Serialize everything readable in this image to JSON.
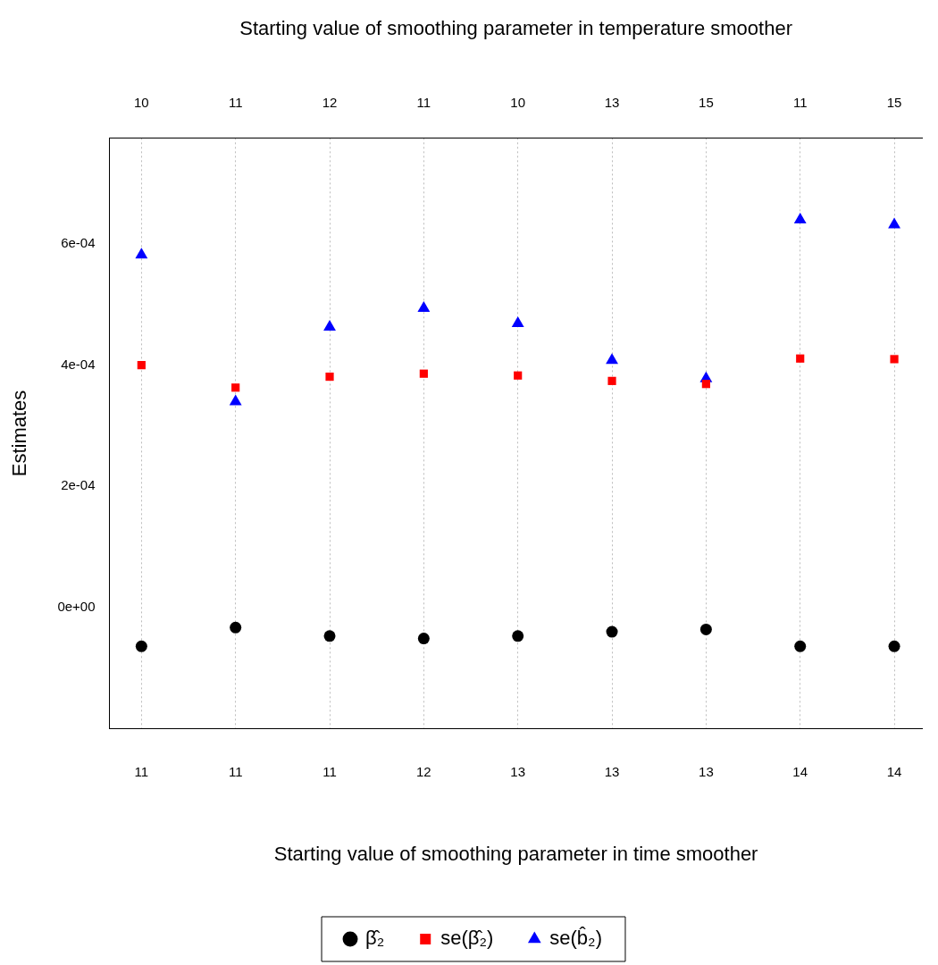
{
  "chart_data": {
    "type": "scatter",
    "xlabel": "Starting value of smoothing parameter in time smoother",
    "x2label": "Starting value of smoothing parameter in temperature smoother",
    "ylabel": "Estimates",
    "categories": [
      "11",
      "11",
      "11",
      "12",
      "13",
      "13",
      "13",
      "14",
      "14"
    ],
    "annotations": [
      "10",
      "11",
      "12",
      "11",
      "10",
      "13",
      "15",
      "11",
      "15"
    ],
    "ylim": [
      -0.0002,
      0.000775
    ],
    "yticks": [
      {
        "value": 0,
        "label": "0e+00"
      },
      {
        "value": 0.0002,
        "label": "2e-04"
      },
      {
        "value": 0.0004,
        "label": "4e-04"
      },
      {
        "value": 0.0006,
        "label": "6e-04"
      }
    ],
    "grid": "x",
    "legend": "bottom",
    "series": [
      {
        "name": "β̂₂",
        "color": "#000000",
        "marker": "circle",
        "values": [
          -6.4e-05,
          -3.3e-05,
          -4.7e-05,
          -5.1e-05,
          -4.7e-05,
          -4e-05,
          -3.6e-05,
          -6.4e-05,
          -6.4e-05
        ]
      },
      {
        "name": "se(β̂₂)",
        "color": "#ff0000",
        "marker": "square",
        "values": [
          0.0004,
          0.000363,
          0.000381,
          0.000386,
          0.000383,
          0.000374,
          0.000369,
          0.000411,
          0.00041
        ]
      },
      {
        "name": "se(b̂₂)",
        "color": "#0000ff",
        "marker": "triangle",
        "values": [
          0.000582,
          0.00034,
          0.000463,
          0.000494,
          0.000469,
          0.000408,
          0.000378,
          0.00064,
          0.000632
        ]
      }
    ]
  }
}
